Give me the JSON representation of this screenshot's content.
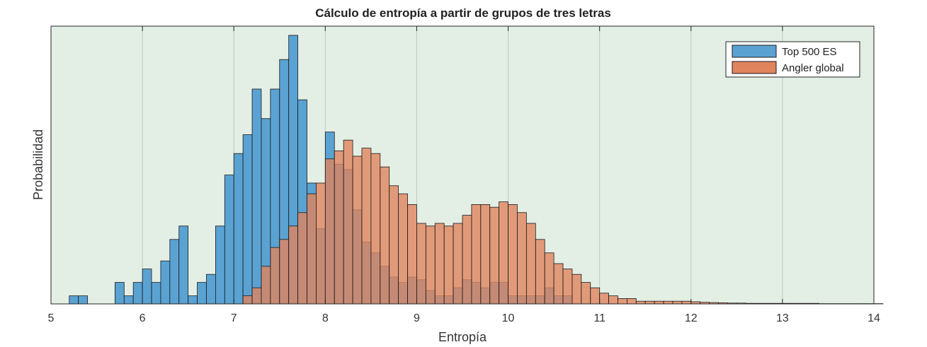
{
  "chart_data": {
    "type": "bar",
    "subtype": "overlapping-histogram",
    "title": "Cálculo de entropía a partir de grupos de tres letras",
    "xlabel": "Entropía",
    "ylabel": "Probabilidad",
    "xlim": [
      5,
      14
    ],
    "ylim": [
      0,
      1
    ],
    "xticks": [
      "5",
      "6",
      "7",
      "8",
      "9",
      "10",
      "11",
      "12",
      "13",
      "14"
    ],
    "yticks_shown": false,
    "grid": "vertical",
    "legend_position": "top-right",
    "bin_width": 0.1,
    "bin_start": 5.2,
    "series": [
      {
        "name": "Top 500 ES",
        "color": "#5aa2d2",
        "edge_color": "#1a1a1a",
        "alpha": 1.0,
        "values": [
          0.03,
          0.03,
          0,
          0,
          0,
          0.08,
          0.03,
          0.08,
          0.13,
          0.08,
          0.16,
          0.24,
          0.29,
          0.03,
          0.08,
          0.11,
          0.29,
          0.48,
          0.56,
          0.63,
          0.8,
          0.69,
          0.8,
          0.91,
          1.0,
          0.76,
          0.45,
          0.28,
          0.64,
          0.52,
          0.5,
          0.35,
          0.23,
          0.19,
          0.14,
          0.1,
          0.08,
          0.1,
          0.09,
          0.05,
          0.03,
          0.03,
          0.06,
          0.09,
          0.08,
          0.06,
          0.08,
          0.08,
          0.03,
          0.03,
          0.03,
          0.03,
          0.06,
          0.03,
          0.03
        ]
      },
      {
        "name": "Angler global",
        "color": "#e0845e",
        "edge_color": "#1a1a1a",
        "alpha": 0.8,
        "values": [
          0,
          0,
          0,
          0,
          0,
          0,
          0,
          0,
          0,
          0,
          0,
          0,
          0,
          0,
          0,
          0,
          0,
          0,
          0,
          0.03,
          0.06,
          0.14,
          0.21,
          0.24,
          0.29,
          0.34,
          0.41,
          0.45,
          0.54,
          0.57,
          0.61,
          0.55,
          0.58,
          0.56,
          0.51,
          0.44,
          0.41,
          0.37,
          0.3,
          0.29,
          0.3,
          0.29,
          0.3,
          0.33,
          0.37,
          0.37,
          0.36,
          0.38,
          0.37,
          0.34,
          0.3,
          0.24,
          0.19,
          0.15,
          0.13,
          0.11,
          0.08,
          0.06,
          0.04,
          0.03,
          0.02,
          0.02,
          0.01,
          0.01,
          0.01,
          0.01,
          0.01,
          0.01,
          0.008,
          0.006,
          0.005,
          0.004,
          0.003,
          0.003,
          0.002,
          0.002,
          0.002,
          0.002,
          0.002,
          0.002,
          0.002,
          0.002,
          0.001,
          0.001,
          0.001,
          0.001,
          0.001,
          0.001,
          0.001
        ]
      }
    ]
  }
}
